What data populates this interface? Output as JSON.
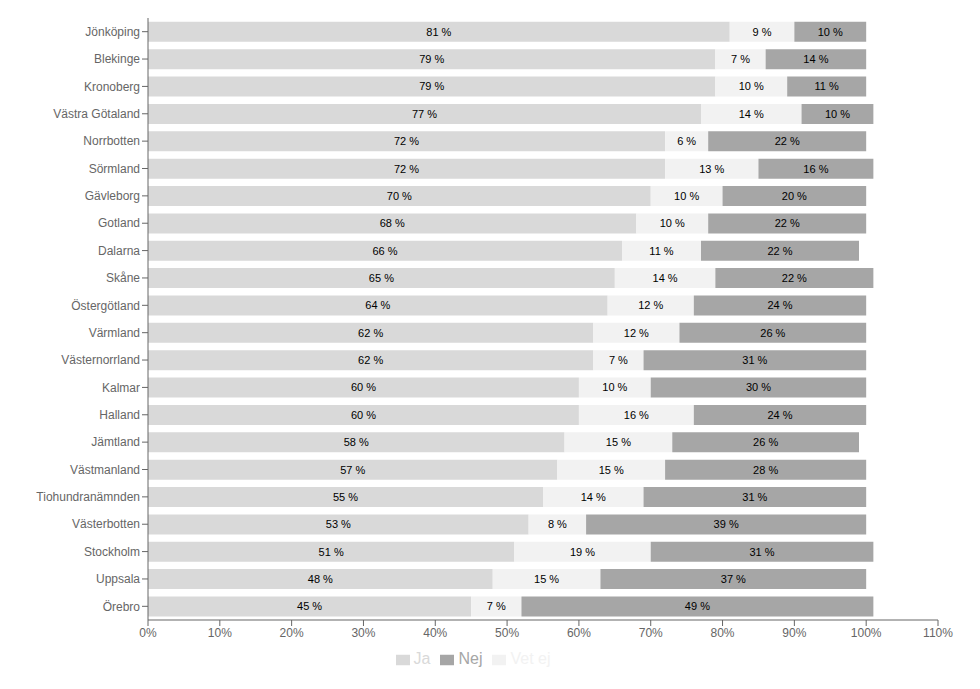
{
  "chart_data": {
    "type": "bar",
    "orientation": "horizontal",
    "stacked": true,
    "data_labels": true,
    "grid": false,
    "legend": "bottom",
    "categories": [
      "Jönköping",
      "Blekinge",
      "Kronoberg",
      "Västra Götaland",
      "Norrbotten",
      "Sörmland",
      "Gävleborg",
      "Gotland",
      "Dalarna",
      "Skåne",
      "Östergötland",
      "Värmland",
      "Västernorrland",
      "Kalmar",
      "Halland",
      "Jämtland",
      "Västmanland",
      "Tiohundranämnden",
      "Västerbotten",
      "Stockholm",
      "Uppsala",
      "Örebro"
    ],
    "series": [
      {
        "name": "Ja",
        "color": "#d9d9d9",
        "values": [
          81,
          79,
          79,
          77,
          72,
          72,
          70,
          68,
          66,
          65,
          64,
          62,
          62,
          60,
          60,
          58,
          57,
          55,
          53,
          51,
          48,
          45
        ],
        "value_labels": [
          "81 %",
          "79 %",
          "79 %",
          "77 %",
          "72 %",
          "72 %",
          "70 %",
          "68 %",
          "66 %",
          "65 %",
          "64 %",
          "62 %",
          "62 %",
          "60 %",
          "60 %",
          "58 %",
          "57 %",
          "55 %",
          "53 %",
          "51 %",
          "48 %",
          "45 %"
        ]
      },
      {
        "name": "Vet ej",
        "color": "#f2f2f2",
        "values": [
          9,
          7,
          10,
          14,
          6,
          13,
          10,
          10,
          11,
          14,
          12,
          12,
          7,
          10,
          16,
          15,
          15,
          14,
          8,
          19,
          15,
          7
        ],
        "value_labels": [
          "9 %",
          "7 %",
          "10 %",
          "14 %",
          "6 %",
          "13 %",
          "10 %",
          "10 %",
          "11 %",
          "14 %",
          "12 %",
          "12 %",
          "7 %",
          "10 %",
          "16 %",
          "15 %",
          "15 %",
          "14 %",
          "8 %",
          "19 %",
          "15 %",
          "7 %"
        ]
      },
      {
        "name": "Nej",
        "color": "#a6a6a6",
        "values": [
          10,
          14,
          11,
          10,
          22,
          16,
          20,
          22,
          22,
          22,
          24,
          26,
          31,
          30,
          24,
          26,
          28,
          31,
          39,
          31,
          37,
          49
        ],
        "value_labels": [
          "10 %",
          "14 %",
          "11 %",
          "10 %",
          "22 %",
          "16 %",
          "20 %",
          "22 %",
          "22 %",
          "22 %",
          "24 %",
          "26 %",
          "31 %",
          "30 %",
          "24 %",
          "26 %",
          "28 %",
          "31 %",
          "39 %",
          "31 %",
          "37 %",
          "49 %"
        ]
      }
    ],
    "xlim": [
      0,
      110
    ],
    "xticks": [
      {
        "value": 0,
        "label": "0%"
      },
      {
        "value": 10,
        "label": "10%"
      },
      {
        "value": 20,
        "label": "20%"
      },
      {
        "value": 30,
        "label": "30%"
      },
      {
        "value": 40,
        "label": "40%"
      },
      {
        "value": 50,
        "label": "50%"
      },
      {
        "value": 60,
        "label": "60%"
      },
      {
        "value": 70,
        "label": "70%"
      },
      {
        "value": 80,
        "label": "80%"
      },
      {
        "value": 90,
        "label": "90%"
      },
      {
        "value": 100,
        "label": "100%"
      },
      {
        "value": 110,
        "label": "110%"
      }
    ]
  }
}
